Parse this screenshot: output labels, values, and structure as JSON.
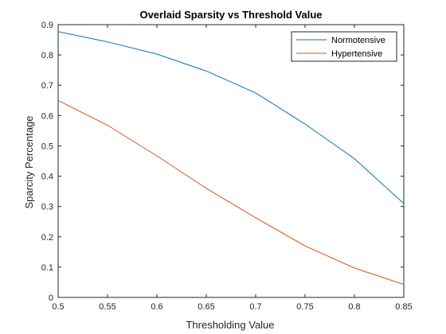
{
  "chart_data": {
    "type": "line",
    "title": "Overlaid Sparsity vs Threshold Value",
    "xlabel": "Thresholding Value",
    "ylabel": "Sparcity Percentage",
    "xlim": [
      0.5,
      0.85
    ],
    "ylim": [
      0,
      0.9
    ],
    "xticks": [
      "0.5",
      "0.55",
      "0.6",
      "0.65",
      "0.7",
      "0.75",
      "0.8",
      "0.85"
    ],
    "yticks": [
      "0",
      "0.1",
      "0.2",
      "0.3",
      "0.4",
      "0.5",
      "0.6",
      "0.7",
      "0.8",
      "0.9"
    ],
    "x": [
      0.5,
      0.55,
      0.6,
      0.65,
      0.7,
      0.75,
      0.8,
      0.85
    ],
    "series": [
      {
        "name": "Normotensive",
        "color": "#0072BD",
        "values": [
          0.877,
          0.843,
          0.803,
          0.747,
          0.675,
          0.572,
          0.458,
          0.31
        ]
      },
      {
        "name": "Hypertensive",
        "color": "#D95319",
        "values": [
          0.65,
          0.568,
          0.467,
          0.36,
          0.263,
          0.17,
          0.097,
          0.043
        ]
      }
    ],
    "grid": false,
    "legend_position": "top-right"
  }
}
